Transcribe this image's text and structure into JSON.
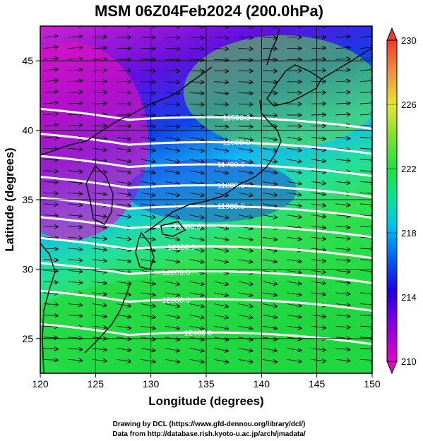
{
  "title": "MSM 06Z04Feb2024 (200.0hPa)",
  "chart_data": {
    "type": "map",
    "xlabel": "Longitude (degrees)",
    "ylabel": "Latitude  (degrees)",
    "xlim": [
      120,
      150
    ],
    "ylim": [
      22.5,
      47.5
    ],
    "xticks": [
      "120",
      "125",
      "130",
      "135",
      "140",
      "145",
      "150"
    ],
    "yticks": [
      "25",
      "30",
      "35",
      "40",
      "45"
    ],
    "xtick_values": [
      120,
      125,
      130,
      135,
      140,
      145,
      150
    ],
    "ytick_values": [
      25,
      30,
      35,
      40,
      45
    ],
    "colorbar": {
      "range": [
        210,
        230
      ],
      "ticks": [
        "210",
        "214",
        "218",
        "222",
        "226",
        "230"
      ],
      "tick_values": [
        210,
        214,
        218,
        222,
        226,
        230
      ],
      "colors": [
        "#e600c8",
        "#5a00e6",
        "#0030f0",
        "#00c8f0",
        "#00e6a0",
        "#20e040",
        "#a0e630",
        "#e6e630",
        "#f08c40",
        "#f03c28"
      ]
    },
    "contours": [
      {
        "label": "11500.0",
        "lat": 41.0
      },
      {
        "label": "11600.0",
        "lat": 39.2
      },
      {
        "label": "11700.0",
        "lat": 37.6
      },
      {
        "label": "11800.0",
        "lat": 36.1
      },
      {
        "label": "11900.0",
        "lat": 34.6
      },
      {
        "label": "12000.0",
        "lat": 33.2
      },
      {
        "label": "12100.0",
        "lat": 31.7
      },
      {
        "label": "12200.0",
        "lat": 29.9
      },
      {
        "label": "12300.0",
        "lat": 27.9
      },
      {
        "label": "12400.0",
        "lat": 25.5
      }
    ]
  },
  "credits": {
    "line1": "Drawing by DCL (https://www.gfd-dennou.org/library/dcl/)",
    "line2": "Data from http://database.rish.kyoto-u.ac.jp/arch/jmadata/"
  }
}
